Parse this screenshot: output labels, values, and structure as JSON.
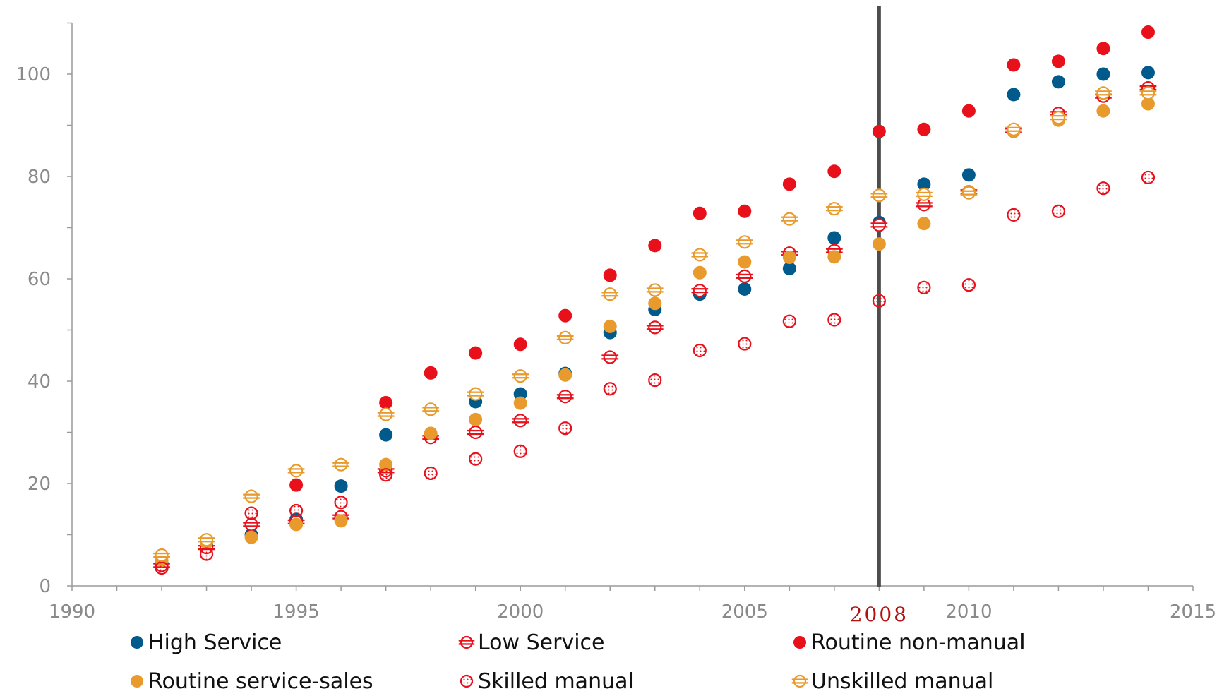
{
  "chart_data": {
    "type": "scatter",
    "xlim": [
      1990,
      2015
    ],
    "ylim": [
      0,
      110
    ],
    "x_ticks": [
      1990,
      1995,
      2000,
      2005,
      2010,
      2015
    ],
    "y_ticks": [
      0,
      20,
      40,
      60,
      80,
      100
    ],
    "reference_line": {
      "x": 2008,
      "label": "2008"
    },
    "legend_position": "bottom",
    "grid": false,
    "series": [
      {
        "name": "High Service",
        "style": "solid",
        "color": "#005a8c",
        "points": [
          [
            1992,
            4.5
          ],
          [
            1993,
            8
          ],
          [
            1994,
            10
          ],
          [
            1995,
            13
          ],
          [
            1996,
            19.5
          ],
          [
            1997,
            29.5
          ],
          [
            1998,
            29.5
          ],
          [
            1999,
            36
          ],
          [
            2000,
            37.5
          ],
          [
            2001,
            41.5
          ],
          [
            2002,
            49.5
          ],
          [
            2003,
            54
          ],
          [
            2004,
            57
          ],
          [
            2005,
            58
          ],
          [
            2006,
            62
          ],
          [
            2007,
            68
          ],
          [
            2008,
            71
          ],
          [
            2009,
            78.5
          ],
          [
            2010,
            80.3
          ],
          [
            2011,
            96
          ],
          [
            2012,
            98.5
          ],
          [
            2013,
            100
          ],
          [
            2014,
            100.3
          ]
        ]
      },
      {
        "name": "Low Service",
        "style": "hstripe",
        "color": "#e8101a",
        "points": [
          [
            1992,
            4
          ],
          [
            1993,
            7.5
          ],
          [
            1994,
            12
          ],
          [
            1995,
            12.5
          ],
          [
            1996,
            13.5
          ],
          [
            1997,
            22.5
          ],
          [
            1998,
            29
          ],
          [
            1999,
            30
          ],
          [
            2000,
            32.3
          ],
          [
            2001,
            37
          ],
          [
            2002,
            44.7
          ],
          [
            2003,
            50.5
          ],
          [
            2004,
            57.7
          ],
          [
            2005,
            60.5
          ],
          [
            2006,
            65
          ],
          [
            2007,
            65.5
          ],
          [
            2008,
            70.5
          ],
          [
            2009,
            74.5
          ],
          [
            2010,
            77
          ],
          [
            2011,
            89
          ],
          [
            2012,
            92.3
          ],
          [
            2013,
            95.7
          ],
          [
            2014,
            97.3
          ]
        ]
      },
      {
        "name": "Routine non-manual",
        "style": "solid",
        "color": "#e8101a",
        "points": [
          [
            1995,
            19.7
          ],
          [
            1997,
            35.8
          ],
          [
            1998,
            41.6
          ],
          [
            1999,
            45.5
          ],
          [
            2000,
            47.2
          ],
          [
            2001,
            52.8
          ],
          [
            2002,
            60.7
          ],
          [
            2003,
            66.5
          ],
          [
            2004,
            72.8
          ],
          [
            2005,
            73.2
          ],
          [
            2006,
            78.5
          ],
          [
            2007,
            81
          ],
          [
            2008,
            88.8
          ],
          [
            2009,
            89.2
          ],
          [
            2010,
            92.8
          ],
          [
            2011,
            101.8
          ],
          [
            2012,
            102.5
          ],
          [
            2013,
            105
          ],
          [
            2014,
            108.2
          ]
        ]
      },
      {
        "name": "Routine service-sales",
        "style": "solid",
        "color": "#e99a2c",
        "points": [
          [
            1992,
            5
          ],
          [
            1993,
            8.5
          ],
          [
            1994,
            9.5
          ],
          [
            1995,
            12
          ],
          [
            1996,
            12.7
          ],
          [
            1997,
            23.7
          ],
          [
            1998,
            29.8
          ],
          [
            1999,
            32.5
          ],
          [
            2000,
            35.7
          ],
          [
            2001,
            41.2
          ],
          [
            2002,
            50.7
          ],
          [
            2003,
            55.2
          ],
          [
            2004,
            61.2
          ],
          [
            2005,
            63.3
          ],
          [
            2006,
            64.2
          ],
          [
            2007,
            64.3
          ],
          [
            2008,
            66.8
          ],
          [
            2009,
            70.8
          ],
          [
            2010,
            77
          ],
          [
            2011,
            88.8
          ],
          [
            2012,
            91
          ],
          [
            2013,
            92.8
          ],
          [
            2014,
            94.2
          ]
        ]
      },
      {
        "name": "Skilled manual",
        "style": "dotted",
        "color": "#e8101a",
        "points": [
          [
            1992,
            3.5
          ],
          [
            1993,
            6.2
          ],
          [
            1994,
            14.2
          ],
          [
            1995,
            14.7
          ],
          [
            1996,
            16.3
          ],
          [
            1997,
            21.7
          ],
          [
            1998,
            22
          ],
          [
            1999,
            24.8
          ],
          [
            2000,
            26.3
          ],
          [
            2001,
            30.8
          ],
          [
            2002,
            38.5
          ],
          [
            2003,
            40.2
          ],
          [
            2004,
            46
          ],
          [
            2005,
            47.3
          ],
          [
            2006,
            51.7
          ],
          [
            2007,
            52
          ],
          [
            2008,
            55.7
          ],
          [
            2009,
            58.3
          ],
          [
            2010,
            58.8
          ],
          [
            2011,
            72.5
          ],
          [
            2012,
            73.2
          ],
          [
            2013,
            77.7
          ],
          [
            2014,
            79.8
          ]
        ]
      },
      {
        "name": "Unskilled manual",
        "style": "hstripe",
        "color": "#e99a2c",
        "points": [
          [
            1992,
            6
          ],
          [
            1993,
            9
          ],
          [
            1994,
            17.5
          ],
          [
            1995,
            22.5
          ],
          [
            1996,
            23.7
          ],
          [
            1997,
            33.5
          ],
          [
            1998,
            34.5
          ],
          [
            1999,
            37.5
          ],
          [
            2000,
            41
          ],
          [
            2001,
            48.5
          ],
          [
            2002,
            57
          ],
          [
            2003,
            57.8
          ],
          [
            2004,
            64.7
          ],
          [
            2005,
            67.2
          ],
          [
            2006,
            71.7
          ],
          [
            2007,
            73.7
          ],
          [
            2008,
            76.3
          ],
          [
            2009,
            76.5
          ],
          [
            2010,
            76.8
          ],
          [
            2011,
            89.2
          ],
          [
            2012,
            91.5
          ],
          [
            2013,
            96.3
          ],
          [
            2014,
            96.3
          ]
        ]
      }
    ]
  }
}
